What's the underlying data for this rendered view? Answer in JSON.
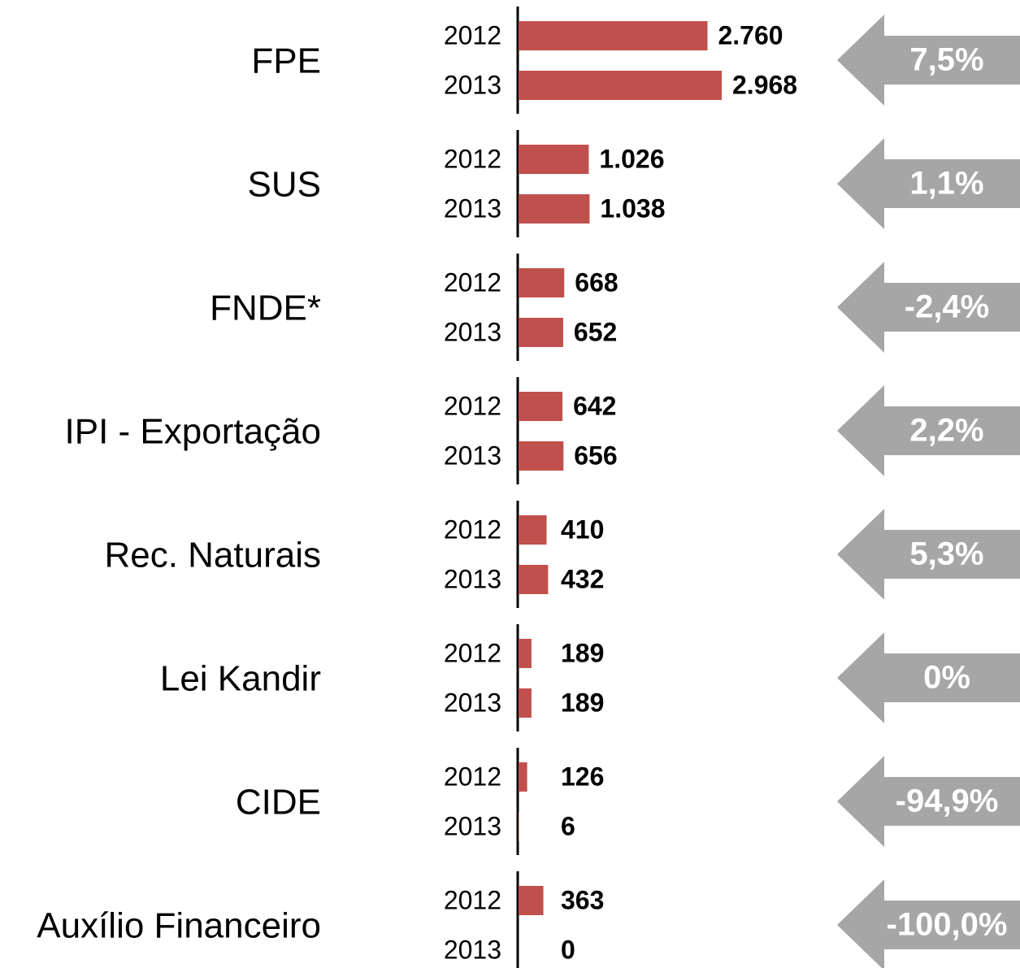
{
  "chart_data": {
    "type": "bar",
    "categories": [
      "FPE",
      "SUS",
      "FNDE*",
      "IPI - Exportação",
      "Rec. Naturais",
      "Lei Kandir",
      "CIDE",
      "Auxílio Financeiro"
    ],
    "series": [
      {
        "name": "2012",
        "color": "#c0504d",
        "values": [
          2760,
          1026,
          668,
          642,
          410,
          189,
          126,
          363
        ],
        "value_labels": [
          "2.760",
          "1.026",
          "668",
          "642",
          "410",
          "189",
          "126",
          "363"
        ]
      },
      {
        "name": "2013",
        "color": "#c0504d",
        "values": [
          2968,
          1038,
          652,
          656,
          432,
          189,
          6,
          0
        ],
        "value_labels": [
          "2.968",
          "1.038",
          "652",
          "656",
          "432",
          "189",
          "6",
          "0"
        ]
      }
    ],
    "changes": [
      7.5,
      1.1,
      -2.4,
      2.2,
      5.3,
      0,
      -94.9,
      -100.0
    ],
    "change_labels": [
      "7,5%",
      "1,1%",
      "-2,4%",
      "2,2%",
      "5,3%",
      "0%",
      "-94,9%",
      "-100,0%"
    ],
    "arrow_color": "#a6a6a6"
  }
}
